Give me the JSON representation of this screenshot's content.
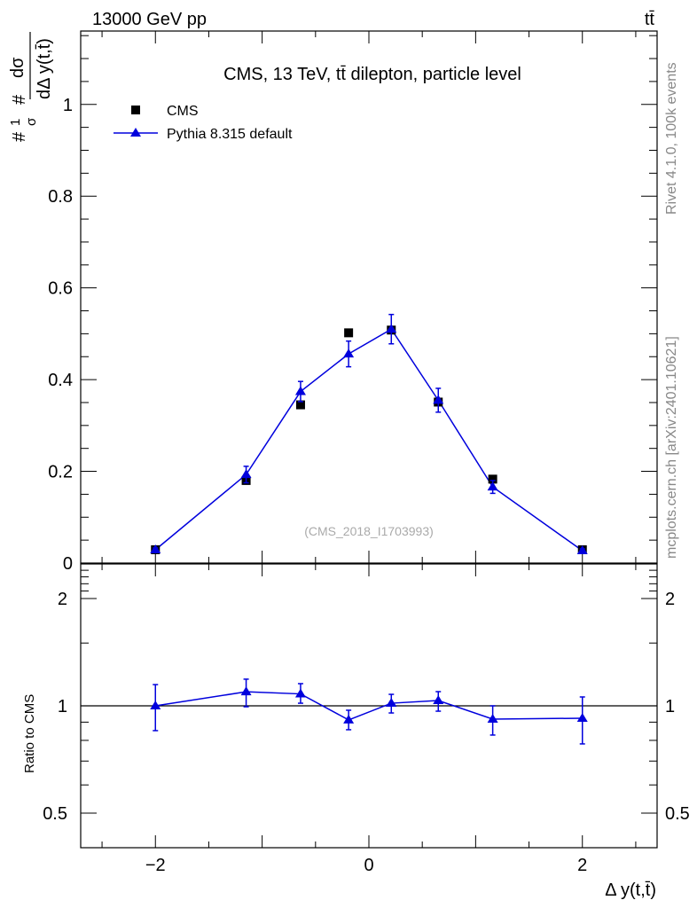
{
  "chart_data": {
    "type": "scatter",
    "header_left": "13000 GeV pp",
    "header_right": "tt̄",
    "title": "CMS, 13 TeV, tt̄ dilepton, particle level",
    "side_label_top": "Rivet 4.1.0,  100k events",
    "side_label_bottom": "mcplots.cern.ch [arXiv:2401.10621]",
    "watermark": "(CMS_2018_I1703993)",
    "ylabel": "1/σ dσ/dΔ y(t,t̄)",
    "ylabel_parts": {
      "frac_left": "1",
      "frac_left_den": "σ",
      "num": "dσ",
      "den": "dΔ y(t,t̄)",
      "hash": "#"
    },
    "xlabel": "Δ y(t,t̄)",
    "ratio_ylabel": "Ratio to CMS",
    "xlim": [
      -2.7,
      2.7
    ],
    "ylim": [
      0,
      1.16
    ],
    "ratio_ylim": [
      0.4,
      2.5
    ],
    "ratio_scale": "log",
    "xticks": [
      -2,
      0,
      2
    ],
    "xtick_labels": [
      "−2",
      "0",
      "2"
    ],
    "yticks": [
      0,
      0.2,
      0.4,
      0.6,
      0.8,
      1
    ],
    "ytick_labels": [
      "0",
      "0.2",
      "0.4",
      "0.6",
      "0.8",
      "1"
    ],
    "ratio_yticks": [
      0.5,
      1,
      2
    ],
    "ratio_ytick_labels": [
      "0.5",
      "1",
      "2"
    ],
    "legend_position": "top-left",
    "x": [
      -2.0,
      -1.15,
      -0.64,
      -0.19,
      0.21,
      0.65,
      1.16,
      2.0
    ],
    "series": [
      {
        "name": "CMS",
        "color": "#000000",
        "marker": "square",
        "values": [
          0.029,
          0.18,
          0.345,
          0.502,
          0.508,
          0.351,
          0.183,
          0.029
        ]
      },
      {
        "name": "Pythia 8.315 default",
        "color": "#0000dd",
        "marker": "triangle",
        "values": [
          0.029,
          0.193,
          0.374,
          0.456,
          0.51,
          0.355,
          0.166,
          0.027
        ],
        "errors": [
          0.004,
          0.018,
          0.022,
          0.028,
          0.032,
          0.026,
          0.014,
          0.004
        ],
        "ratio": [
          1.0,
          1.095,
          1.08,
          0.913,
          1.017,
          1.035,
          0.918,
          0.923
        ],
        "ratio_err_up": [
          1.147,
          1.188,
          1.154,
          0.972,
          1.077,
          1.096,
          1.0,
          1.059
        ],
        "ratio_err_down": [
          0.852,
          0.994,
          1.017,
          0.857,
          0.955,
          0.966,
          0.828,
          0.782
        ]
      }
    ]
  }
}
